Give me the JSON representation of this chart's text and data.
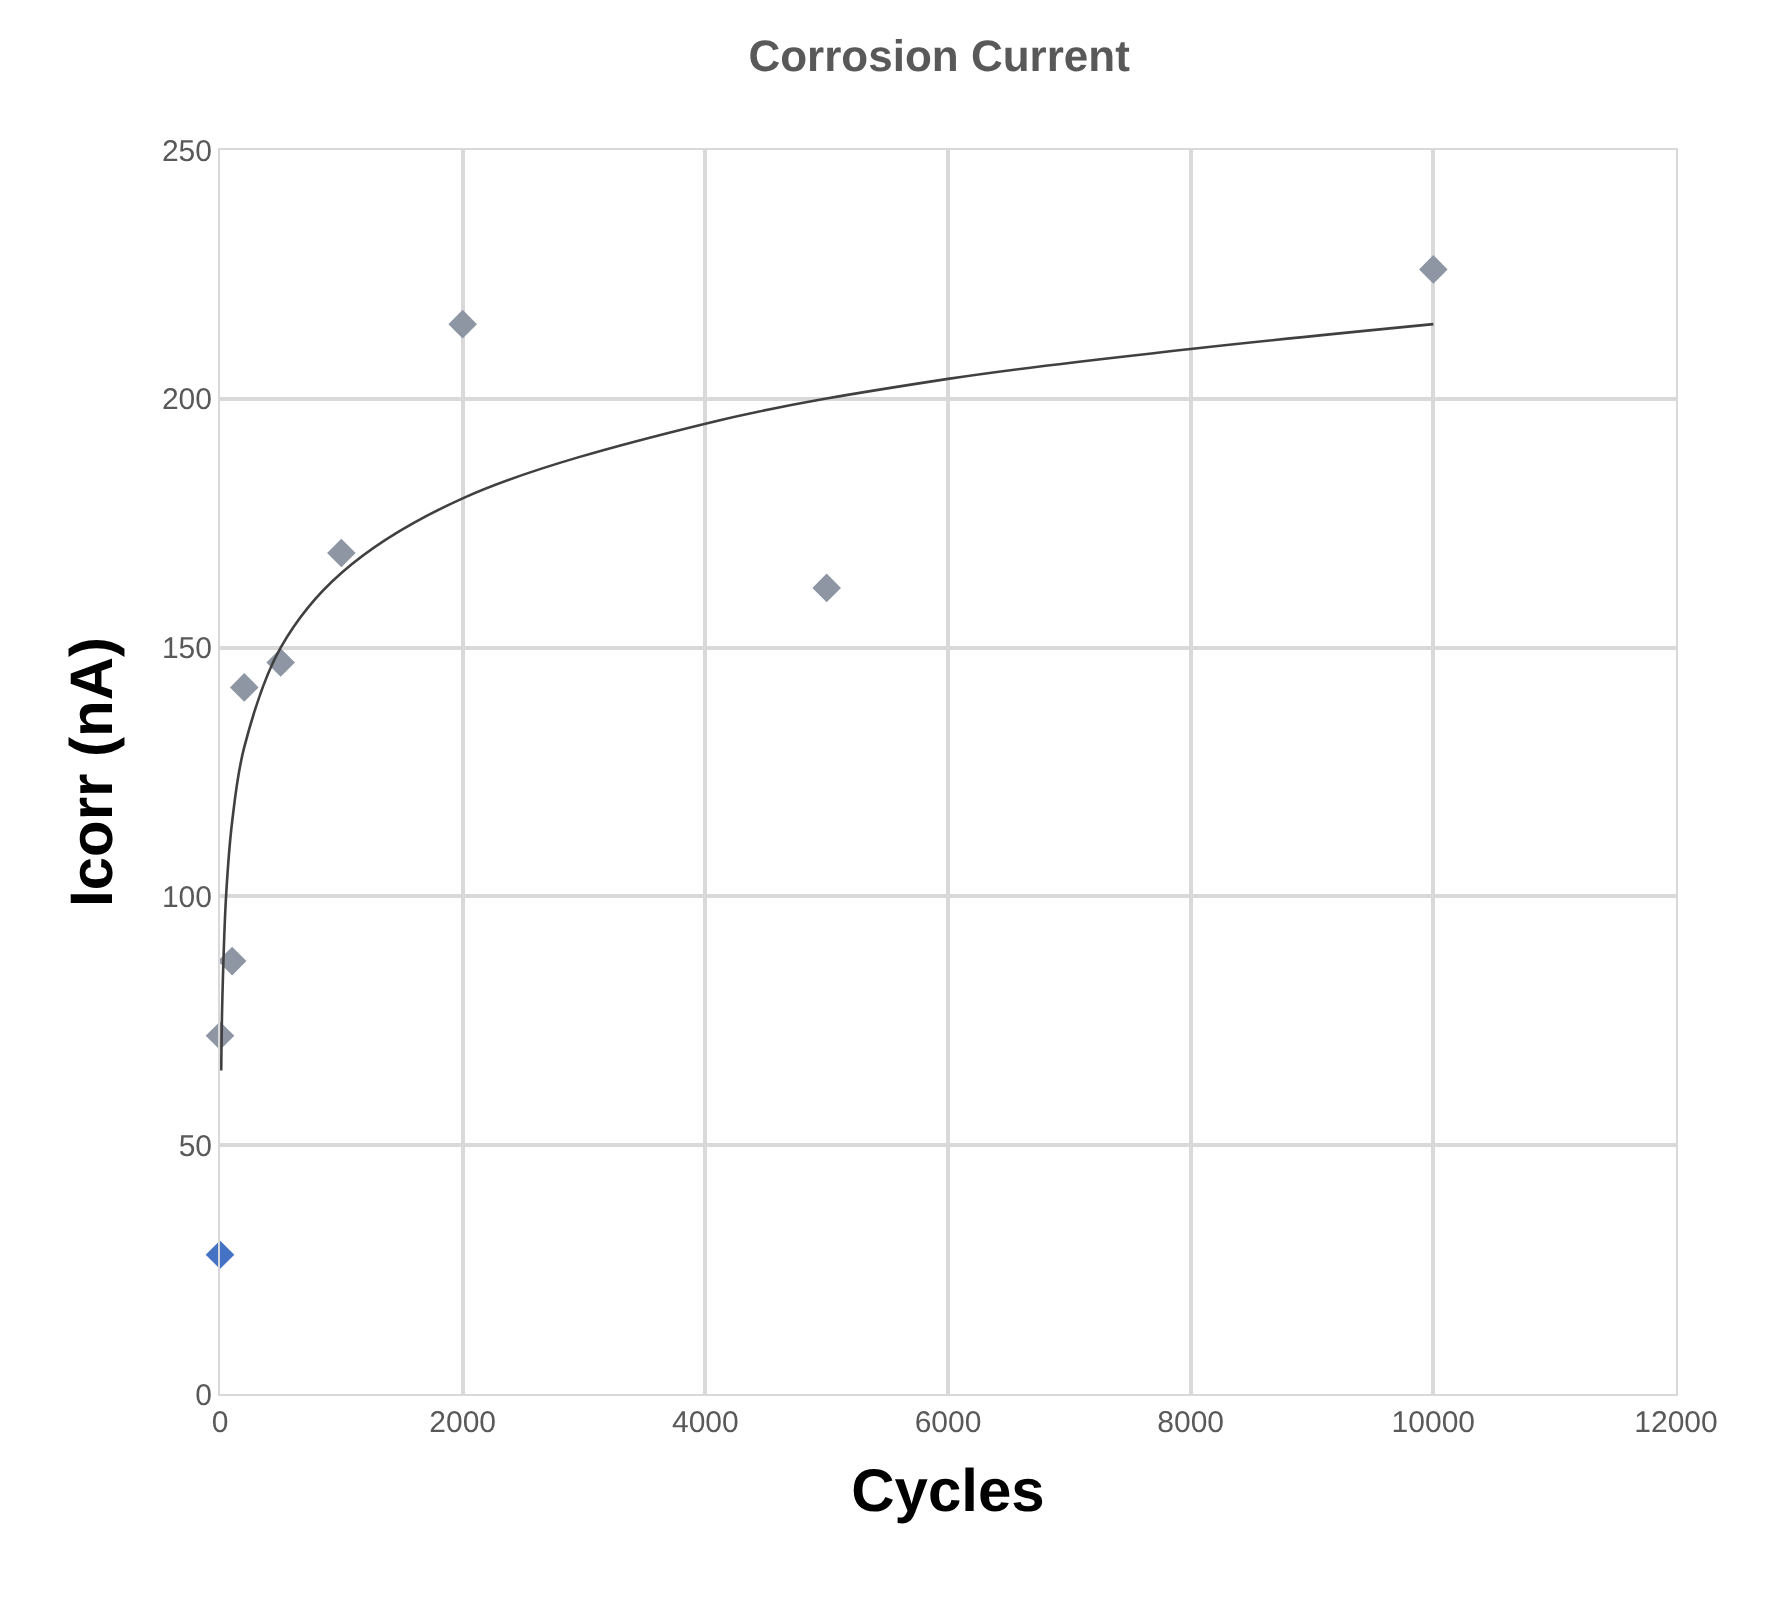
{
  "chart_data": {
    "type": "scatter",
    "title": "Corrosion Current",
    "xlabel": "Cycles",
    "ylabel": "Icorr (nA)",
    "xlim": [
      0,
      12000
    ],
    "xticks": [
      0,
      2000,
      4000,
      6000,
      8000,
      10000,
      12000
    ],
    "ylim": [
      0,
      250
    ],
    "yticks": [
      0,
      50,
      100,
      150,
      200,
      250
    ],
    "grid": true,
    "marker": "diamond",
    "series": [
      {
        "color": "#4472c4",
        "x": [
          0
        ],
        "values": [
          28
        ]
      },
      {
        "color": "#8e96a3",
        "x": [
          0,
          100,
          200,
          500,
          1000,
          2000,
          5000,
          10000
        ],
        "values": [
          72,
          87,
          142,
          147,
          169,
          215,
          162,
          226
        ]
      },
      {
        "type": "line",
        "color": "#404040",
        "marker": "none",
        "line_style": "solid",
        "x": [
          10,
          20,
          50,
          100,
          200,
          500,
          1000,
          2000,
          4000,
          6000,
          8000,
          10000
        ],
        "values": [
          65,
          80,
          100,
          115,
          130,
          150,
          165,
          180,
          195,
          204,
          210,
          215
        ]
      }
    ]
  }
}
